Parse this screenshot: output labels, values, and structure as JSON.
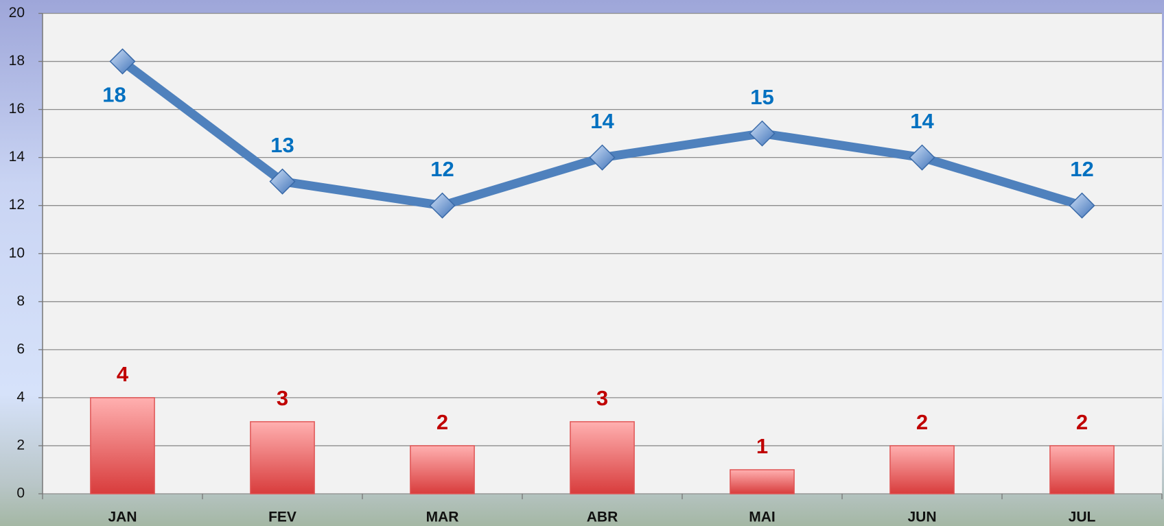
{
  "chart_data": {
    "type": "bar-line",
    "categories": [
      "JAN",
      "FEV",
      "MAR",
      "ABR",
      "MAI",
      "JUN",
      "JUL"
    ],
    "series": [
      {
        "type": "bar",
        "color": "#e05555",
        "label_color": "#c00000",
        "values": [
          4,
          3,
          2,
          3,
          1,
          2,
          2
        ]
      },
      {
        "type": "line",
        "color": "#4f81bd",
        "label_color": "#0070c0",
        "values": [
          18,
          13,
          12,
          14,
          15,
          14,
          12
        ]
      }
    ],
    "ylim": [
      0,
      20
    ],
    "yticks": [
      0,
      2,
      4,
      6,
      8,
      10,
      12,
      14,
      16,
      18,
      20
    ],
    "grid": true
  }
}
